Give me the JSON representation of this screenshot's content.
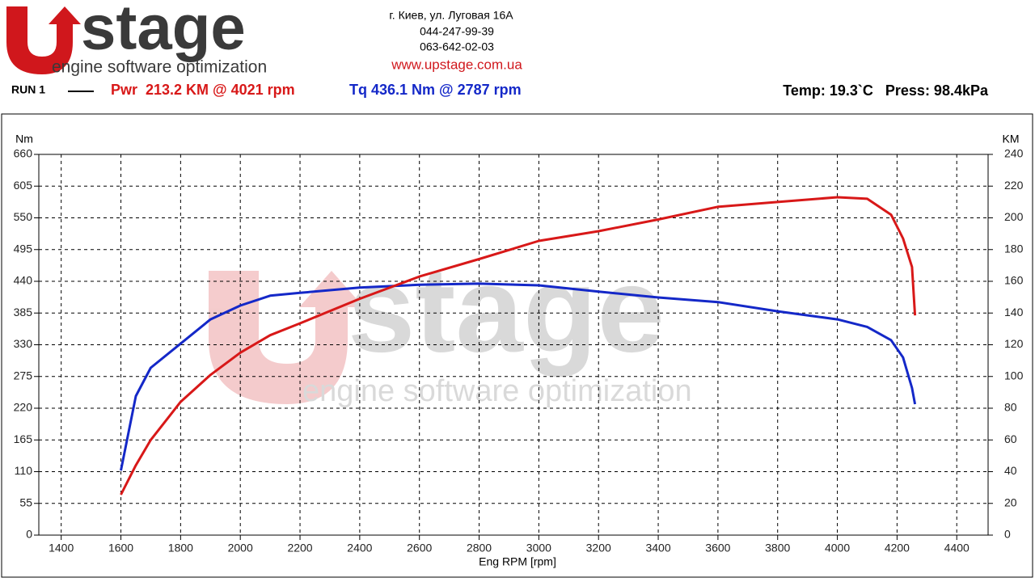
{
  "header": {
    "logo_word": "stage",
    "logo_tagline": "engine software optimization",
    "address": "г. Киев, ул. Луговая 16А",
    "phone_1": "044-247-99-39",
    "phone_2": "063-642-02-03",
    "website": "www.upstage.com.ua"
  },
  "chart_data": {
    "type": "line",
    "run_label": "RUN 1",
    "power_summary": "Pwr  213.2 KM @ 4021 rpm",
    "torque_summary": "Tq 436.1 Nm @ 2787 rpm",
    "conditions": "Temp: 19.3`C   Press: 98.4kPa",
    "y_label": "Nm",
    "y2_label": "KM",
    "x_label": "Eng RPM [rpm]",
    "x": [
      1600,
      1650,
      1700,
      1800,
      1900,
      2000,
      2100,
      2200,
      2400,
      2600,
      2800,
      3000,
      3200,
      3400,
      3600,
      3800,
      4000,
      4100,
      4180,
      4220,
      4250,
      4260
    ],
    "series": [
      {
        "name": "Tq",
        "color": "#1428c8",
        "axis": "y",
        "values": [
          112,
          241,
          290,
          332,
          374,
          398,
          415,
          420,
          429,
          434,
          436,
          433,
          422,
          412,
          404,
          388,
          374,
          361,
          338,
          308,
          255,
          227
        ]
      },
      {
        "name": "Pwr",
        "color": "#d81818",
        "axis": "y2",
        "values": [
          25.5,
          44,
          60,
          84,
          101,
          115,
          126,
          133.5,
          149,
          163,
          174,
          185.5,
          191.6,
          199,
          207,
          210,
          213,
          212,
          202,
          187,
          169,
          138.5
        ]
      }
    ],
    "xlim": [
      1325,
      4505
    ],
    "xticks": [
      1400,
      1600,
      1800,
      2000,
      2200,
      2400,
      2600,
      2800,
      3000,
      3200,
      3400,
      3600,
      3800,
      4000,
      4200,
      4400
    ],
    "ylim": [
      0,
      660
    ],
    "yticks": [
      0,
      55,
      110,
      165,
      220,
      275,
      330,
      385,
      440,
      495,
      550,
      605,
      660
    ],
    "y2lim": [
      0,
      240
    ],
    "y2ticks": [
      0,
      20,
      40,
      60,
      80,
      100,
      120,
      140,
      160,
      180,
      200,
      220,
      240
    ],
    "grid": true
  }
}
